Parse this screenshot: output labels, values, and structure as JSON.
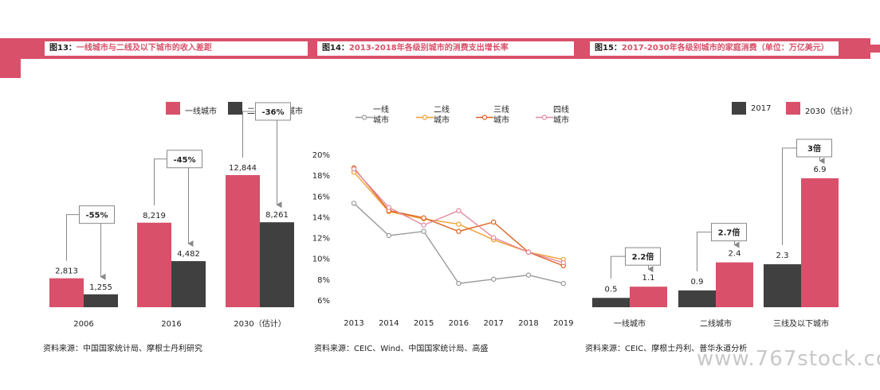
{
  "colors": {
    "pink": "#d9506a",
    "dark": "#404040",
    "grey": "#9a9a9a",
    "yellow": "#f0a030",
    "orange": "#e06020",
    "lightpink": "#e38aa0"
  },
  "titles": [
    {
      "prefix": "图13：",
      "text": "一线城市与二线及以下城市的收入差距"
    },
    {
      "prefix": "图14：",
      "text": "2013-2018年各级别城市的消费支出增长率"
    },
    {
      "prefix": "图15：",
      "text": "2017-2030年各级别城市的家庭消费（单位：万亿美元）"
    }
  ],
  "sources": [
    "资料来源：中国国家统计局、摩根士丹利研究",
    "资料来源：CEIC、Wind、中国国家统计局、高盛",
    "资料来源：CEIC、摩根士丹利、普华永道分析"
  ],
  "watermark": "www.767stock.com",
  "chart_data": [
    {
      "type": "bar",
      "categories": [
        "2006",
        "2016",
        "2030（估计）"
      ],
      "series": [
        {
          "name": "一线城市",
          "values": [
            2813,
            8219,
            12844
          ],
          "labels": [
            "2,813",
            "8,219",
            "12,844"
          ]
        },
        {
          "name": "二线及以下城市",
          "values": [
            1255,
            4482,
            8261
          ],
          "labels": [
            "1,255",
            "4,482",
            "8,261"
          ]
        }
      ],
      "annotations": [
        "-55%",
        "-45%",
        "-36%"
      ],
      "legend": "top"
    },
    {
      "type": "line",
      "x": [
        "2013",
        "2014",
        "2015",
        "2016",
        "2017",
        "2018",
        "2019"
      ],
      "ylim": [
        6,
        20
      ],
      "yticks": [
        "6%",
        "8%",
        "10%",
        "12%",
        "14%",
        "16%",
        "18%",
        "20%"
      ],
      "series": [
        {
          "name": [
            "一线",
            "城市"
          ],
          "values": [
            15.3,
            12.2,
            12.6,
            7.6,
            8.0,
            8.4,
            7.6
          ]
        },
        {
          "name": [
            "二线",
            "城市"
          ],
          "values": [
            18.3,
            14.5,
            13.8,
            13.3,
            11.8,
            10.6,
            9.9
          ]
        },
        {
          "name": [
            "三线",
            "城市"
          ],
          "values": [
            18.7,
            14.6,
            13.9,
            12.6,
            13.5,
            10.6,
            9.3
          ]
        },
        {
          "name": [
            "四线",
            "城市"
          ],
          "values": [
            18.6,
            14.9,
            13.2,
            14.6,
            12.0,
            10.6,
            9.6
          ]
        }
      ],
      "legend": "top"
    },
    {
      "type": "bar",
      "categories": [
        "一线城市",
        "二线城市",
        "三线及以下城市"
      ],
      "series": [
        {
          "name": "2017",
          "values": [
            0.5,
            0.9,
            2.3
          ],
          "labels": [
            "0.5",
            "0.9",
            "2.3"
          ]
        },
        {
          "name": "2030（估计）",
          "values": [
            1.1,
            2.4,
            6.9
          ],
          "labels": [
            "1.1",
            "2.4",
            "6.9"
          ]
        }
      ],
      "annotations": [
        "2.2倍",
        "2.7倍",
        "3倍"
      ],
      "legend": "top-right"
    }
  ]
}
